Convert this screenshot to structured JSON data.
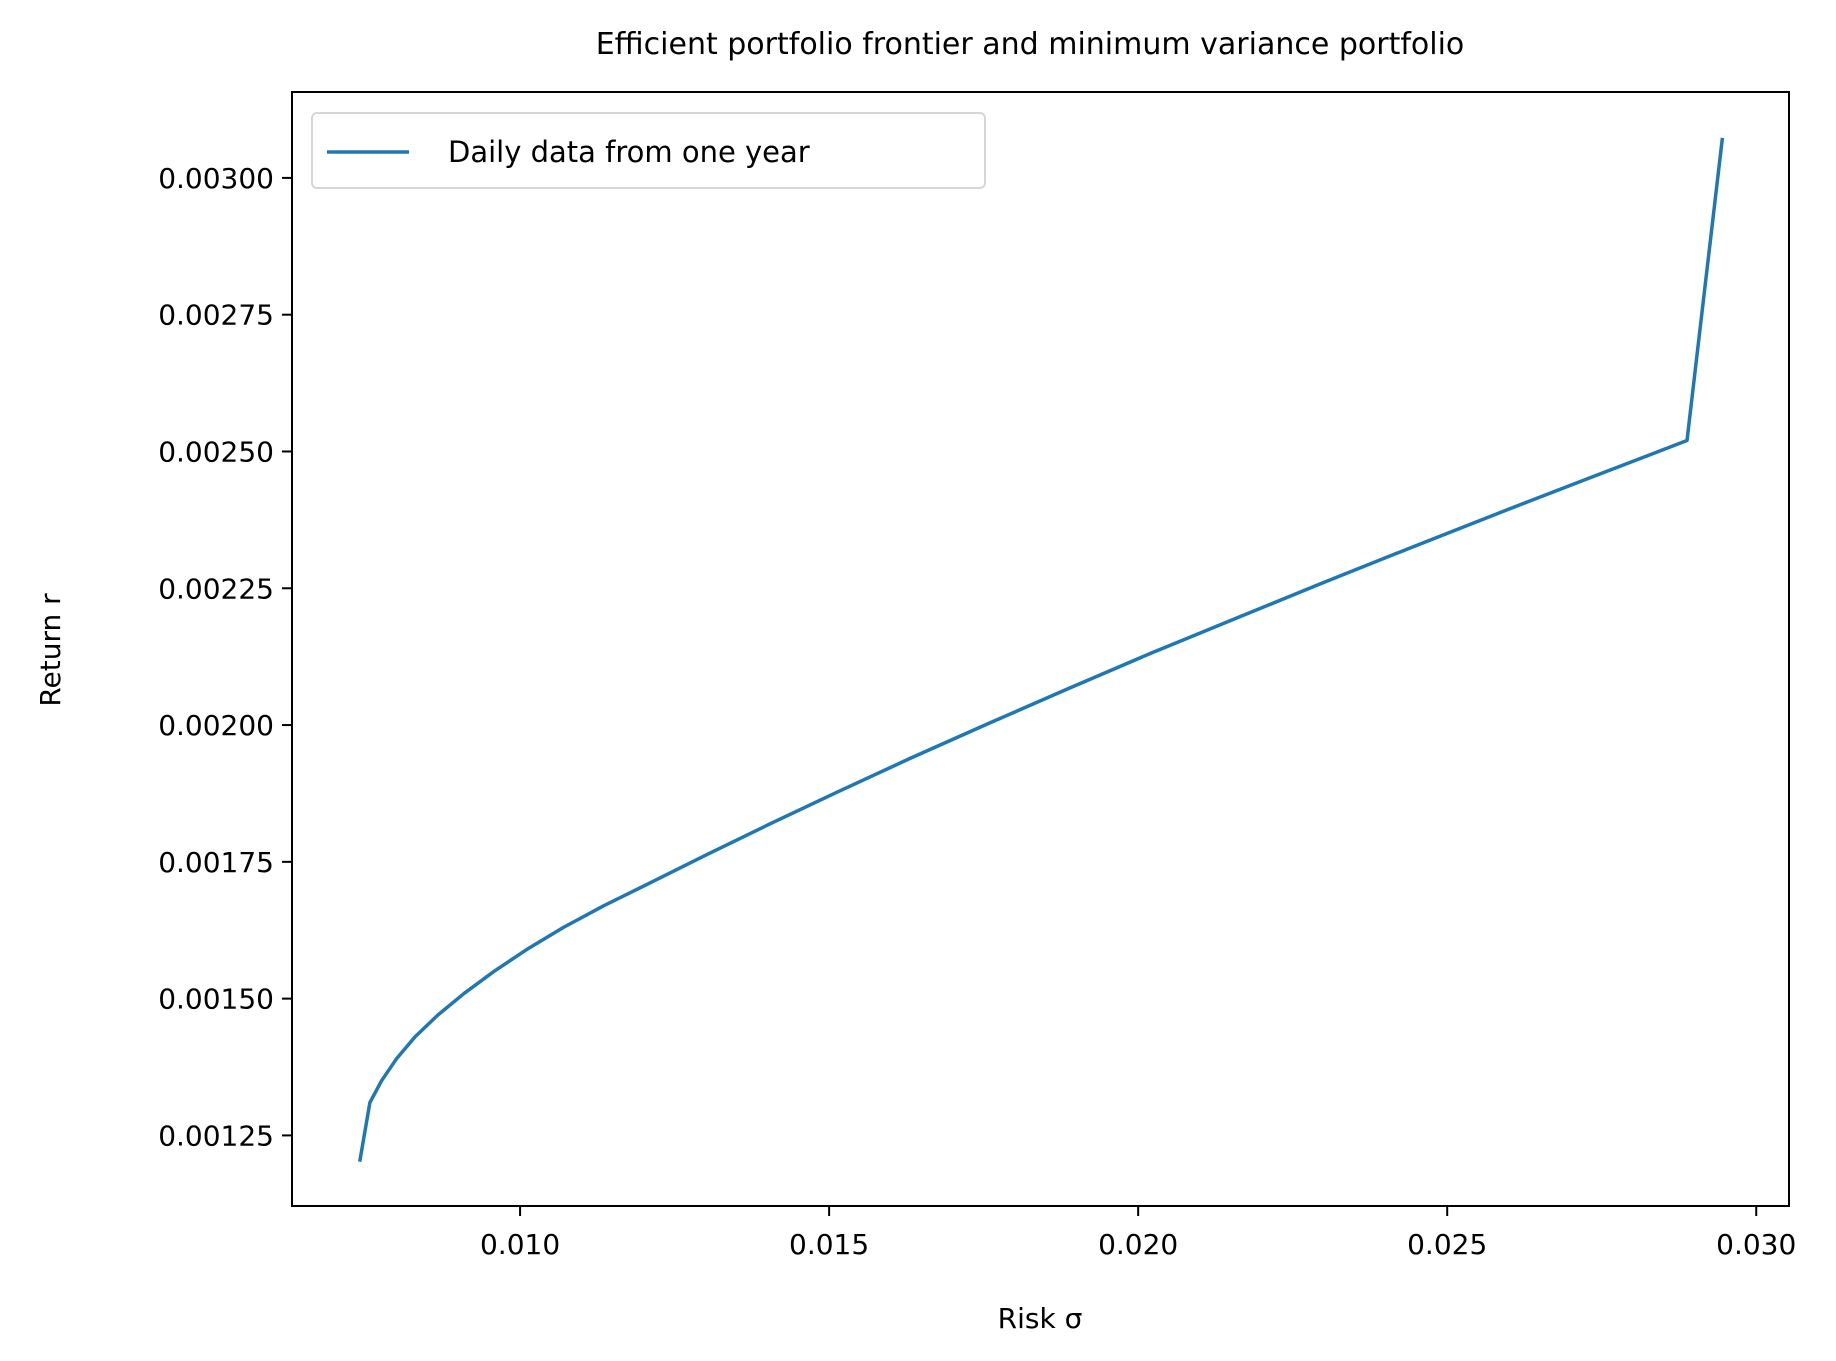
{
  "chart_data": {
    "type": "line",
    "title": "Efficient portfolio frontier and minimum variance portfolio",
    "xlabel": "Risk σ",
    "ylabel": "Return r",
    "xlim": [
      0.00631,
      0.03053
    ],
    "ylim": [
      0.001121,
      0.003157
    ],
    "x_ticks": [
      0.01,
      0.015,
      0.02,
      0.025,
      0.03
    ],
    "x_tick_labels": [
      "0.010",
      "0.015",
      "0.020",
      "0.025",
      "0.030"
    ],
    "y_ticks": [
      0.00125,
      0.0015,
      0.00175,
      0.002,
      0.00225,
      0.0025,
      0.00275,
      0.003
    ],
    "y_tick_labels": [
      "0.00125",
      "0.00150",
      "0.00175",
      "0.00200",
      "0.00225",
      "0.00250",
      "0.00275",
      "0.00300"
    ],
    "grid": false,
    "legend_position": "top-left",
    "series": [
      {
        "name": "Daily data from one year",
        "color": "#1f77b4",
        "x": [
          0.00741,
          0.00757,
          0.00776,
          0.008,
          0.0083,
          0.00867,
          0.0091,
          0.00958,
          0.01011,
          0.0107,
          0.01136,
          0.01213,
          0.01302,
          0.01402,
          0.01512,
          0.01631,
          0.01756,
          0.01886,
          0.0202,
          0.02158,
          0.02299,
          0.02443,
          0.02589,
          0.02738,
          0.02888,
          0.02945
        ],
        "y": [
          0.001205,
          0.00131,
          0.00135,
          0.00139,
          0.00143,
          0.00147,
          0.00151,
          0.00155,
          0.00159,
          0.00163,
          0.00167,
          0.001713,
          0.001763,
          0.001818,
          0.001877,
          0.001939,
          0.002002,
          0.002066,
          0.002131,
          0.002195,
          0.00226,
          0.002325,
          0.00239,
          0.002455,
          0.00252,
          0.00307
        ]
      }
    ]
  }
}
